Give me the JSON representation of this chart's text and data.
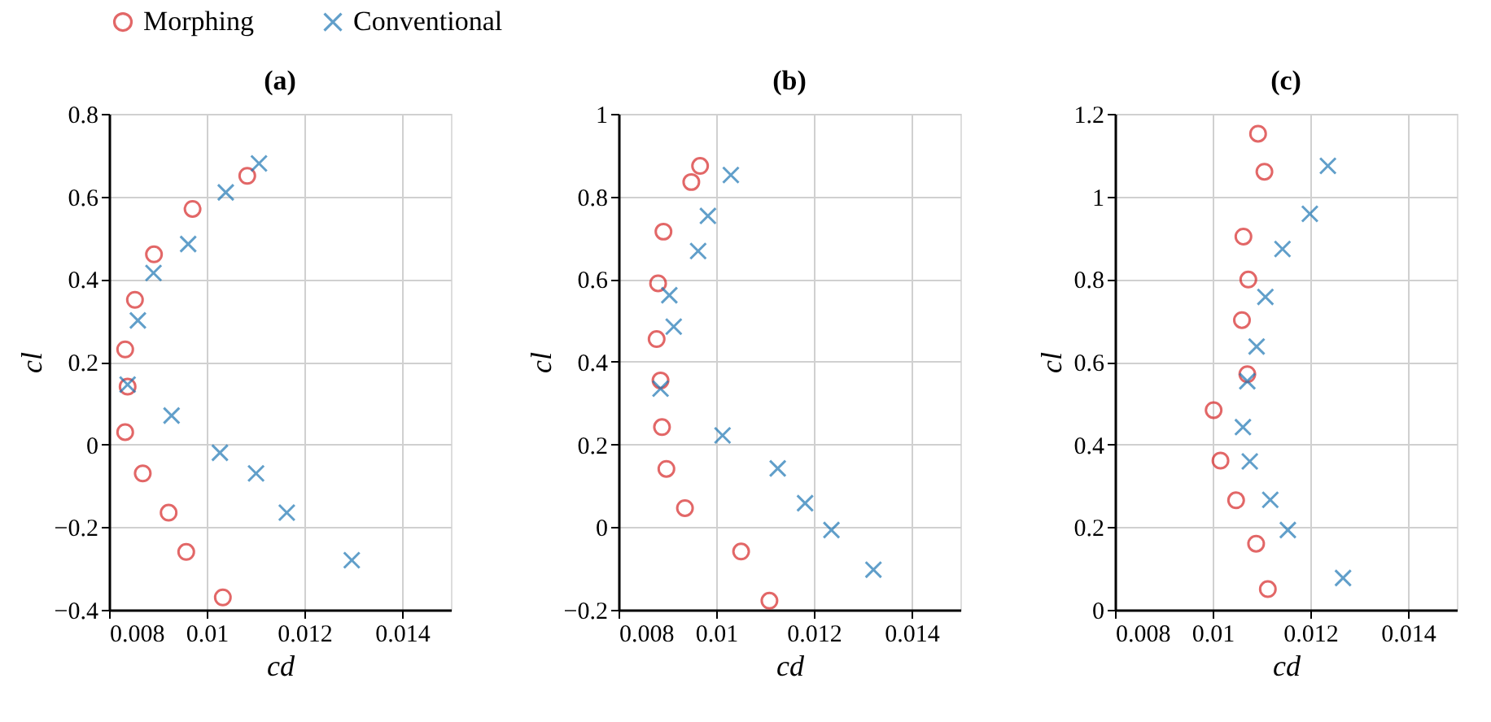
{
  "chart_data": [
    {
      "type": "scatter",
      "title": "(a)",
      "xlabel": "cd",
      "ylabel": "cl",
      "xlim": [
        0.008,
        0.015
      ],
      "xticks": [
        0.008,
        0.01,
        0.012,
        0.014
      ],
      "ylim": [
        -0.4,
        0.8
      ],
      "yticks": [
        -0.4,
        -0.2,
        0,
        0.2,
        0.4,
        0.6,
        0.8
      ],
      "grid": true,
      "legend": "top",
      "series": [
        {
          "name": "Morphing",
          "color": "#d62728",
          "marker": "circle",
          "x": [
            0.01083,
            0.00971,
            0.00892,
            0.00853,
            0.00833,
            0.00838,
            0.00833,
            0.00869,
            0.00922,
            0.00958,
            0.01033
          ],
          "values": [
            0.65,
            0.57,
            0.46,
            0.35,
            0.23,
            0.14,
            0.03,
            -0.07,
            -0.165,
            -0.26,
            -0.37
          ]
        },
        {
          "name": "Conventional",
          "color": "#1f77b4",
          "marker": "cross",
          "x": [
            0.01107,
            0.01039,
            0.00962,
            0.00891,
            0.00859,
            0.00838,
            0.00928,
            0.01027,
            0.01101,
            0.01164,
            0.01297
          ],
          "values": [
            0.68,
            0.61,
            0.485,
            0.415,
            0.3,
            0.145,
            0.07,
            -0.02,
            -0.07,
            -0.165,
            -0.28
          ]
        }
      ]
    },
    {
      "type": "scatter",
      "title": "(b)",
      "xlabel": "cd",
      "ylabel": "cl",
      "xlim": [
        0.008,
        0.015
      ],
      "xticks": [
        0.008,
        0.01,
        0.012,
        0.014
      ],
      "ylim": [
        -0.2,
        1
      ],
      "yticks": [
        -0.2,
        0,
        0.2,
        0.4,
        0.6,
        0.8,
        1
      ],
      "grid": true,
      "legend": "top",
      "series": [
        {
          "name": "Morphing",
          "color": "#d62728",
          "marker": "circle",
          "x": [
            0.00967,
            0.00949,
            0.00892,
            0.00881,
            0.00878,
            0.00886,
            0.00889,
            0.00898,
            0.00936,
            0.01051,
            0.01109
          ],
          "values": [
            0.874,
            0.835,
            0.715,
            0.59,
            0.455,
            0.355,
            0.242,
            0.141,
            0.046,
            -0.059,
            -0.178
          ]
        },
        {
          "name": "Conventional",
          "color": "#1f77b4",
          "marker": "cross",
          "x": [
            0.0103,
            0.00983,
            0.00963,
            0.00904,
            0.00913,
            0.00886,
            0.01013,
            0.01126,
            0.01182,
            0.01236,
            0.01322
          ],
          "values": [
            0.852,
            0.753,
            0.668,
            0.561,
            0.485,
            0.335,
            0.222,
            0.142,
            0.058,
            -0.007,
            -0.103
          ]
        }
      ]
    },
    {
      "type": "scatter",
      "title": "(c)",
      "xlabel": "cd",
      "ylabel": "cl",
      "xlim": [
        0.008,
        0.015
      ],
      "xticks": [
        0.008,
        0.01,
        0.012,
        0.014
      ],
      "ylim": [
        0,
        1.2
      ],
      "yticks": [
        0,
        0.2,
        0.4,
        0.6,
        0.8,
        1,
        1.2
      ],
      "grid": true,
      "legend": "top",
      "series": [
        {
          "name": "Morphing",
          "color": "#d62728",
          "marker": "circle",
          "x": [
            0.01093,
            0.01106,
            0.01063,
            0.01073,
            0.0106,
            0.01071,
            0.01002,
            0.01016,
            0.01048,
            0.01089,
            0.01113
          ],
          "values": [
            1.152,
            1.06,
            0.903,
            0.799,
            0.701,
            0.57,
            0.483,
            0.361,
            0.265,
            0.16,
            0.05
          ]
        },
        {
          "name": "Conventional",
          "color": "#1f77b4",
          "marker": "cross",
          "x": [
            0.01236,
            0.01199,
            0.01143,
            0.01108,
            0.0109,
            0.01071,
            0.01062,
            0.01076,
            0.01118,
            0.01154,
            0.01267
          ],
          "values": [
            1.074,
            0.958,
            0.873,
            0.757,
            0.637,
            0.553,
            0.442,
            0.359,
            0.266,
            0.193,
            0.077
          ]
        }
      ]
    }
  ]
}
